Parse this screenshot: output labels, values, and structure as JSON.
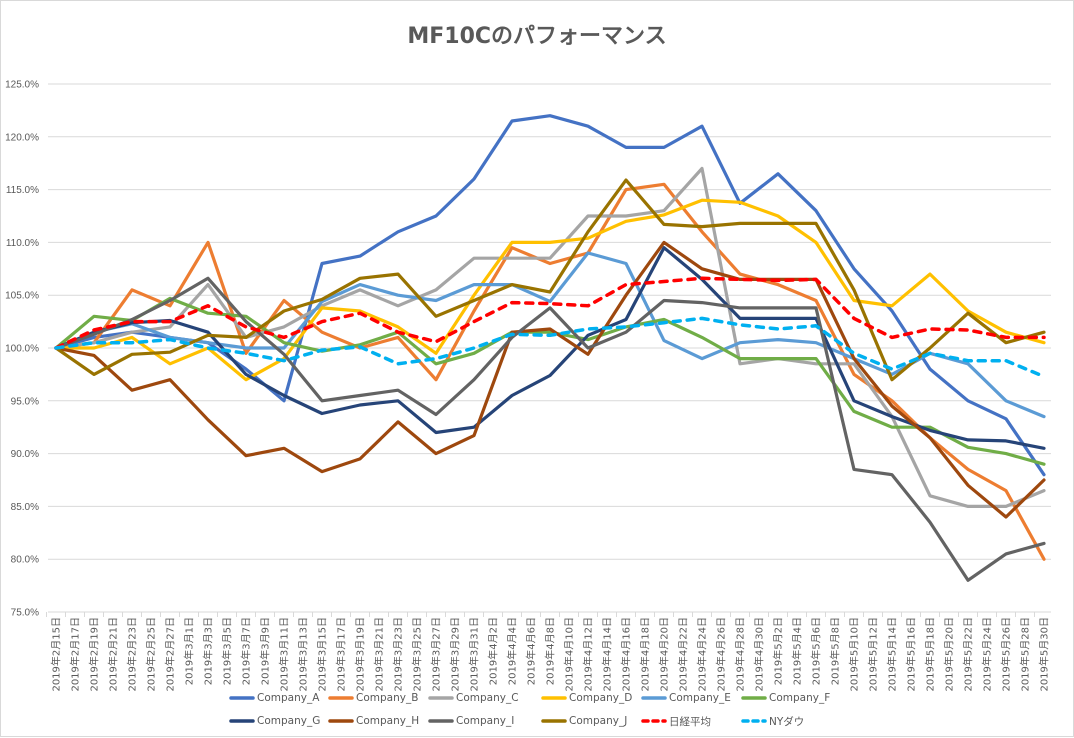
{
  "chart_data": {
    "type": "line",
    "title": "MF10Cのパフォーマンス",
    "ylim": [
      75,
      125
    ],
    "y_ticks": [
      75,
      80,
      85,
      90,
      95,
      100,
      105,
      110,
      115,
      120,
      125
    ],
    "y_tick_labels": [
      "75.0%",
      "80.0%",
      "85.0%",
      "90.0%",
      "95.0%",
      "100.0%",
      "105.0%",
      "110.0%",
      "115.0%",
      "120.0%",
      "125.0%"
    ],
    "x_range": [
      "2019-02-15",
      "2019-05-31"
    ],
    "x_tick_labels": [
      "2019年2月15日",
      "2019年2月17日",
      "2019年2月19日",
      "2019年2月21日",
      "2019年2月23日",
      "2019年2月25日",
      "2019年2月27日",
      "2019年3月1日",
      "2019年3月3日",
      "2019年3月5日",
      "2019年3月7日",
      "2019年3月9日",
      "2019年3月11日",
      "2019年3月13日",
      "2019年3月15日",
      "2019年3月17日",
      "2019年3月19日",
      "2019年3月21日",
      "2019年3月23日",
      "2019年3月25日",
      "2019年3月27日",
      "2019年3月29日",
      "2019年3月31日",
      "2019年4月2日",
      "2019年4月4日",
      "2019年4月6日",
      "2019年4月8日",
      "2019年4月10日",
      "2019年4月12日",
      "2019年4月14日",
      "2019年4月16日",
      "2019年4月18日",
      "2019年4月20日",
      "2019年4月22日",
      "2019年4月24日",
      "2019年4月26日",
      "2019年4月28日",
      "2019年4月30日",
      "2019年5月2日",
      "2019年5月4日",
      "2019年5月6日",
      "2019年5月8日",
      "2019年5月10日",
      "2019年5月12日",
      "2019年5月14日",
      "2019年5月16日",
      "2019年5月18日",
      "2019年5月20日",
      "2019年5月22日",
      "2019年5月24日",
      "2019年5月26日",
      "2019年5月28日",
      "2019年5月30日"
    ],
    "grid": true,
    "legend_placement": "bottom",
    "x": [
      "2019-02-15",
      "2019-02-19",
      "2019-02-23",
      "2019-02-27",
      "2019-03-03",
      "2019-03-07",
      "2019-03-11",
      "2019-03-15",
      "2019-03-19",
      "2019-03-23",
      "2019-03-27",
      "2019-03-31",
      "2019-04-04",
      "2019-04-08",
      "2019-04-12",
      "2019-04-16",
      "2019-04-20",
      "2019-04-24",
      "2019-04-28",
      "2019-05-02",
      "2019-05-06",
      "2019-05-10",
      "2019-05-14",
      "2019-05-18",
      "2019-05-22",
      "2019-05-26",
      "2019-05-30"
    ],
    "series": [
      {
        "name": "Company_A",
        "color": "#4472C4",
        "dashed": false,
        "values": [
          100,
          101,
          101.5,
          101,
          100.5,
          98,
          95,
          108,
          108.7,
          111,
          112.5,
          116,
          121.5,
          122,
          121,
          119,
          119,
          121,
          113.7,
          116.5,
          113,
          107.5,
          103.5,
          98,
          95,
          93.3,
          88
        ]
      },
      {
        "name": "Company_B",
        "color": "#ED7D31",
        "dashed": false,
        "values": [
          100,
          100.5,
          105.5,
          104,
          110,
          99.5,
          104.5,
          101.5,
          100,
          101,
          97,
          103.5,
          109.5,
          108,
          109,
          115,
          115.5,
          111,
          107,
          106,
          104.5,
          97.5,
          95,
          91.5,
          88.5,
          86.5,
          80
        ]
      },
      {
        "name": "Company_C",
        "color": "#A5A5A5",
        "dashed": false,
        "values": [
          100,
          100.5,
          101.5,
          102,
          106,
          101,
          102,
          104,
          105.5,
          104,
          105.5,
          108.5,
          108.5,
          108.5,
          112.5,
          112.5,
          113,
          117,
          98.5,
          99,
          98.5,
          98.5,
          93.5,
          86,
          85,
          85,
          86.5
        ]
      },
      {
        "name": "Company_D",
        "color": "#FFC000",
        "dashed": false,
        "values": [
          100,
          100,
          101,
          98.5,
          100,
          97,
          99,
          103.8,
          103.5,
          102,
          99.5,
          105,
          110,
          110,
          110.4,
          112,
          112.6,
          114,
          113.8,
          112.5,
          110,
          104.5,
          104,
          107,
          103.5,
          101.5,
          100.5
        ]
      },
      {
        "name": "Company_E",
        "color": "#5B9BD5",
        "dashed": false,
        "values": [
          100,
          101.5,
          102.3,
          101,
          100.5,
          100,
          100,
          104.4,
          106,
          105,
          104.5,
          106,
          106,
          104.4,
          109,
          108,
          100.7,
          99,
          100.5,
          100.8,
          100.5,
          99,
          97.5,
          99.5,
          98.5,
          95,
          93.5
        ]
      },
      {
        "name": "Company_F",
        "color": "#70AD47",
        "dashed": false,
        "values": [
          100,
          103,
          102.6,
          104.7,
          103.3,
          103,
          100.5,
          99.7,
          100.3,
          101.5,
          98.5,
          99.5,
          101.5,
          101.5,
          100.8,
          102,
          102.7,
          101,
          99,
          99,
          99,
          94,
          92.5,
          92.5,
          90.6,
          90,
          89
        ]
      },
      {
        "name": "Company_G",
        "color": "#264478",
        "dashed": false,
        "values": [
          100,
          101.5,
          102.4,
          102.6,
          101.5,
          97.5,
          95.5,
          93.8,
          94.6,
          95,
          92,
          92.5,
          95.5,
          97.4,
          101.2,
          102.7,
          109.5,
          106.5,
          102.8,
          102.8,
          102.8,
          95,
          93.5,
          92.2,
          91.3,
          91.2,
          90.5
        ]
      },
      {
        "name": "Company_H",
        "color": "#9E480E",
        "dashed": false,
        "values": [
          100,
          99.3,
          96,
          97,
          93.2,
          89.8,
          90.5,
          88.3,
          89.5,
          93,
          90,
          91.7,
          101.5,
          101.8,
          99.4,
          105,
          110,
          107.5,
          106.5,
          106.5,
          106.5,
          99,
          94.5,
          91.5,
          87,
          84,
          87.5
        ]
      },
      {
        "name": "Company_I",
        "color": "#636363",
        "dashed": false,
        "values": [
          100,
          101.3,
          102.7,
          104.5,
          106.6,
          102.5,
          99.4,
          95,
          95.5,
          96,
          93.7,
          97,
          101,
          103.8,
          100,
          101.5,
          104.5,
          104.3,
          103.8,
          103.8,
          103.8,
          88.5,
          88,
          83.5,
          78,
          80.5,
          81.5
        ]
      },
      {
        "name": "Company_J",
        "color": "#997300",
        "dashed": false,
        "values": [
          100,
          97.5,
          99.4,
          99.6,
          101.2,
          101,
          103.5,
          104.6,
          106.6,
          107,
          103,
          104.5,
          106,
          105.3,
          111,
          115.9,
          111.7,
          111.5,
          111.8,
          111.8,
          111.8,
          105.5,
          97,
          100,
          103.3,
          100.5,
          101.5
        ]
      },
      {
        "name": "日経平均",
        "color": "#FF0000",
        "dashed": true,
        "values": [
          100,
          101.7,
          102.5,
          102.5,
          104,
          102,
          101,
          102.5,
          103.3,
          101.5,
          100.6,
          102.5,
          104.3,
          104.2,
          104,
          106,
          106.3,
          106.6,
          106.5,
          106.4,
          106.5,
          102.8,
          101,
          101.8,
          101.7,
          101,
          101
        ]
      },
      {
        "name": "NYダウ",
        "color": "#00B0F0",
        "dashed": true,
        "values": [
          100,
          100.5,
          100.5,
          100.8,
          100,
          99.5,
          98.8,
          99.8,
          100.1,
          98.5,
          99,
          100,
          101.3,
          101.2,
          101.8,
          102,
          102.4,
          102.8,
          102.2,
          101.8,
          102.1,
          99.5,
          98,
          99.5,
          98.8,
          98.8,
          97.3
        ]
      }
    ]
  }
}
